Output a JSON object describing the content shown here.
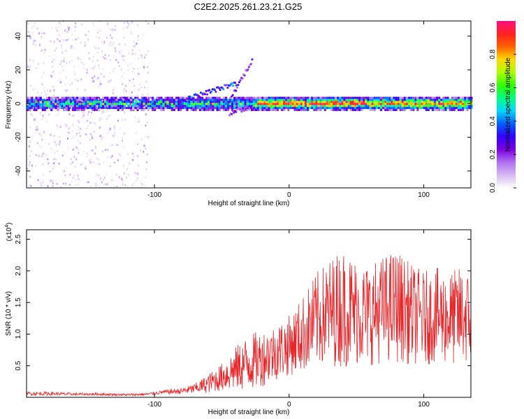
{
  "title": "C2E2.2025.261.23.21.G25",
  "chart_data": [
    {
      "type": "heatmap",
      "xlabel": "Height of straight line (km)",
      "ylabel": "Frequency (Hz)",
      "xlim": [
        -195,
        135
      ],
      "ylim": [
        -50,
        49
      ],
      "xticks": [
        -100,
        0,
        100
      ],
      "xtick_labels": [
        "-100",
        "0",
        "100"
      ],
      "yticks": [
        -40,
        -20,
        0,
        20,
        40
      ],
      "ytick_labels": [
        "-40",
        "-20",
        "0",
        "20",
        "40"
      ],
      "colorbar": {
        "label": "Normalized spectral amplitude",
        "range": [
          0.0,
          1.0
        ],
        "ticks": [
          0.0,
          0.2,
          0.4,
          0.6,
          0.8
        ],
        "tick_labels": [
          "0.0",
          "0.2",
          "0.4",
          "0.6",
          "0.8"
        ],
        "colors": [
          "#ffffff",
          "#d6b8f2",
          "#b070f0",
          "#7a00e0",
          "#3400ff",
          "#0060ff",
          "#00d8ff",
          "#00ff80",
          "#30ff00",
          "#b0ff00",
          "#ffd800",
          "#ff6000",
          "#ff2020",
          "#ff1080"
        ]
      },
      "features": [
        {
          "name": "main-band",
          "x_range": [
            -195,
            135
          ],
          "freq_center": 0,
          "freq_halfwidth": 2.5,
          "peak_amplitude": 0.9
        },
        {
          "name": "fanning-branch",
          "x_range": [
            -80,
            -40
          ],
          "freq_start": 2,
          "freq_end": 12,
          "peak_amplitude": 0.45
        },
        {
          "name": "rising-branch",
          "x_range": [
            -45,
            -28
          ],
          "freq_start": 2,
          "freq_end": 26,
          "peak_amplitude": 0.3
        },
        {
          "name": "falling-branch",
          "x_range": [
            -45,
            -28
          ],
          "freq_start": -6,
          "freq_end": -2,
          "peak_amplitude": 0.3
        },
        {
          "name": "noise-columns",
          "x_range": [
            -195,
            -105
          ],
          "freq_range": [
            -50,
            49
          ],
          "peak_amplitude": 0.15
        }
      ]
    },
    {
      "type": "line",
      "xlabel": "Height of straight line (km)",
      "ylabel": "SNR (10 * v/v)",
      "y_scale_label": "(x10",
      "y_scale_exponent": "4",
      "y_scale_suffix": ")",
      "xlim": [
        -195,
        135
      ],
      "ylim": [
        0,
        2.65
      ],
      "xticks": [
        -100,
        0,
        100
      ],
      "xtick_labels": [
        "-100",
        "0",
        "100"
      ],
      "yticks": [
        0.5,
        1.0,
        1.5,
        2.0,
        2.5
      ],
      "ytick_labels": [
        "0.5",
        "1.0",
        "1.5",
        "2.0",
        "2.5"
      ],
      "color": "#e8262a",
      "x": [
        -195,
        -180,
        -160,
        -140,
        -120,
        -105,
        -95,
        -80,
        -70,
        -60,
        -50,
        -40,
        -30,
        -20,
        -10,
        0,
        10,
        20,
        30,
        40,
        50,
        60,
        70,
        80,
        90,
        100,
        110,
        120,
        130,
        135
      ],
      "y": [
        0.06,
        0.06,
        0.05,
        0.05,
        0.04,
        0.05,
        0.08,
        0.1,
        0.14,
        0.22,
        0.32,
        0.45,
        0.55,
        0.62,
        0.72,
        0.82,
        1.0,
        1.22,
        1.35,
        1.42,
        1.35,
        1.3,
        1.4,
        1.45,
        1.32,
        1.25,
        1.3,
        1.25,
        1.3,
        1.2
      ],
      "spread": [
        0.03,
        0.03,
        0.02,
        0.02,
        0.02,
        0.02,
        0.03,
        0.05,
        0.08,
        0.15,
        0.22,
        0.35,
        0.45,
        0.45,
        0.45,
        0.48,
        0.6,
        0.75,
        0.85,
        0.95,
        0.85,
        0.8,
        0.85,
        0.9,
        0.8,
        0.75,
        0.75,
        0.75,
        0.8,
        0.7
      ]
    }
  ]
}
